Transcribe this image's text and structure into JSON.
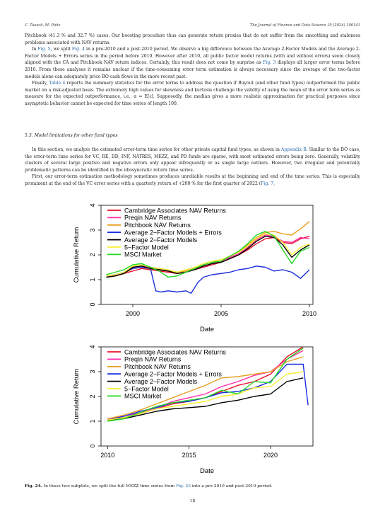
{
  "header": {
    "left": "C. Tausch, M. Pietz",
    "right": "The Journal of Finance and Data Science 10 (2024) 100141"
  },
  "paragraphs": {
    "p1": "Pitchbook (41.3 % and 32.7 %) cases. Our boosting procedure thus can generate return proxies that do not suffer from the smoothing and staleness problems associated with NAV returns.",
    "p2_a": "In ",
    "p2_link1": "Fig. 5",
    "p2_b": ", we split ",
    "p2_link2": "Fig. 4",
    "p2_c": " in a pre-2010 and a post-2010 period. We observe a big difference between the Average 2-Factor Models and the Average 2-Factor Models + Errors series in the period before 2010. However after 2010, all public factor model returns (with and without errors) seem closely aligned with the CA and Pitchbook NAV return indices. Certainly, this result does not come by surprise as ",
    "p2_link3": "Fig. 3",
    "p2_d": " displays all larger error terms before 2010. From these analyses it remains unclear if the time-consuming error term estimation is always necessary since the average of the two-factor models alone can adequately price BO cash flows in the more recent past.",
    "p3_a": "Finally, ",
    "p3_link1": "Table 4",
    "p3_b": " reports the summary statistics for the error terms to address the question if Buyout (and other fund types) outperformed the public market on a risk-adjusted basis. The extremely high values for skewness and kurtosis challenge the validity of using the mean of the error term series as measure for the expected outperformance, i.e., α = E[ε]. Supposedly, the median gives a more realistic approximation for practical purposes since asymptotic behavior cannot be expected for time series of length 100.",
    "section_title": "5.3.  Model limitations for other fund types",
    "p4_a": "In this section, we analyze the estimated error-term time series for other private capital fund types, as shown in ",
    "p4_link1": "Appendix B",
    "p4_b": ". Similar to the BO case, the error-term time series for VC, RE, DD, INF, NATRES, MEZZ, and PD funds are sparse, with most estimated errors being zero. Generally, volatility clusters of several large positive and negative errors only appear infrequently or as single large outliers. However, two irregular and potentially problematic patterns can be identified in the idiosyncratic return time series.",
    "p5_a": "First, our error-term estimation methodology sometimes produces unreliable results at the beginning and end of the time series. This is especially prominent at the end of the VC error series with a quarterly return of +200 % for the first quarter of 2022 (",
    "p5_link1": "Fig. 7",
    "p5_b": ","
  },
  "chart_data": [
    {
      "type": "line",
      "xlabel": "Date",
      "ylabel": "Cumulative Return",
      "xlim": [
        1998.2,
        2010.2
      ],
      "ylim": [
        0,
        4
      ],
      "xticks": [
        2000,
        2005,
        2010
      ],
      "yticks": [
        0,
        1,
        2,
        3,
        4
      ],
      "legend_position": "top-left",
      "series": [
        {
          "name": "Cambridge Associates NAV Returns",
          "color": "#e8102a",
          "x": [
            1998.5,
            1999,
            1999.5,
            2000,
            2000.5,
            2001,
            2001.5,
            2002,
            2002.5,
            2003,
            2003.5,
            2004,
            2004.5,
            2005,
            2005.5,
            2006,
            2006.5,
            2007,
            2007.5,
            2008,
            2008.5,
            2009,
            2009.5,
            2010
          ],
          "y": [
            1.1,
            1.15,
            1.25,
            1.35,
            1.45,
            1.4,
            1.35,
            1.3,
            1.25,
            1.3,
            1.4,
            1.5,
            1.6,
            1.7,
            1.85,
            2.0,
            2.2,
            2.45,
            2.65,
            2.7,
            2.5,
            2.45,
            2.65,
            2.75
          ]
        },
        {
          "name": "Preqin NAV Returns",
          "color": "#ff2ea8",
          "x": [
            1998.5,
            1999,
            1999.5,
            2000,
            2000.5,
            2001,
            2001.5,
            2002,
            2002.5,
            2003,
            2003.5,
            2004,
            2004.5,
            2005,
            2005.5,
            2006,
            2006.5,
            2007,
            2007.5,
            2008,
            2008.5,
            2009,
            2009.5,
            2010
          ],
          "y": [
            1.15,
            1.2,
            1.3,
            1.5,
            1.55,
            1.5,
            1.45,
            1.35,
            1.3,
            1.35,
            1.45,
            1.55,
            1.65,
            1.75,
            1.9,
            2.05,
            2.3,
            2.6,
            2.8,
            2.75,
            2.55,
            2.5,
            2.7,
            2.65
          ]
        },
        {
          "name": "Pitchbook NAV Returns",
          "color": "#e8a020",
          "x": [
            1998.5,
            1999,
            1999.5,
            2000,
            2000.5,
            2001,
            2001.5,
            2002,
            2002.5,
            2003,
            2003.5,
            2004,
            2004.5,
            2005,
            2005.5,
            2006,
            2006.5,
            2007,
            2007.5,
            2008,
            2008.5,
            2009,
            2009.5,
            2010
          ],
          "y": [
            1.1,
            1.15,
            1.25,
            1.45,
            1.5,
            1.45,
            1.4,
            1.35,
            1.3,
            1.35,
            1.45,
            1.6,
            1.7,
            1.8,
            1.95,
            2.15,
            2.4,
            2.7,
            2.9,
            2.95,
            2.85,
            2.8,
            3.05,
            3.35
          ]
        },
        {
          "name": "Average 2−Factor Models + Errors",
          "color": "#1a2ee0",
          "x": [
            1998.5,
            1999,
            1999.5,
            2000,
            2000.5,
            2001,
            2001.3,
            2001.6,
            2002,
            2002.5,
            2003,
            2003.3,
            2003.7,
            2004,
            2004.5,
            2005,
            2005.5,
            2006,
            2006.5,
            2007,
            2007.5,
            2008,
            2008.5,
            2009,
            2009.5,
            2010
          ],
          "y": [
            1.15,
            1.2,
            1.3,
            1.45,
            1.5,
            1.45,
            0.55,
            0.5,
            0.55,
            0.5,
            0.55,
            0.45,
            0.9,
            1.1,
            1.2,
            1.25,
            1.3,
            1.4,
            1.45,
            1.55,
            1.5,
            1.35,
            1.4,
            1.3,
            1.05,
            1.4
          ]
        },
        {
          "name": "Average 2−Factor Models",
          "color": "#000000",
          "x": [
            1998.5,
            1999,
            1999.5,
            2000,
            2000.5,
            2001,
            2001.5,
            2002,
            2002.5,
            2003,
            2003.5,
            2004,
            2004.5,
            2005,
            2005.5,
            2006,
            2006.5,
            2007,
            2007.5,
            2008,
            2008.5,
            2009,
            2009.5,
            2010
          ],
          "y": [
            1.1,
            1.15,
            1.25,
            1.5,
            1.55,
            1.45,
            1.4,
            1.35,
            1.25,
            1.3,
            1.4,
            1.55,
            1.65,
            1.7,
            1.85,
            2.0,
            2.25,
            2.55,
            2.75,
            2.7,
            2.4,
            1.9,
            2.2,
            2.4
          ]
        },
        {
          "name": "5−Factor Model",
          "color": "#f5f032",
          "x": [
            1998.5,
            1999,
            1999.5,
            2000,
            2000.5,
            2001,
            2001.5,
            2002,
            2002.5,
            2003,
            2003.5,
            2004,
            2004.5,
            2005,
            2005.5,
            2006,
            2006.5,
            2007,
            2007.5,
            2008,
            2008.5,
            2009,
            2009.5,
            2010
          ],
          "y": [
            1.15,
            1.2,
            1.3,
            1.55,
            1.6,
            1.5,
            1.45,
            1.4,
            1.3,
            1.4,
            1.5,
            1.65,
            1.75,
            1.8,
            1.95,
            2.1,
            2.35,
            2.65,
            2.85,
            2.8,
            2.5,
            2.0,
            2.3,
            2.45
          ]
        },
        {
          "name": "MSCI Market",
          "color": "#22d822",
          "x": [
            1998.5,
            1999,
            1999.5,
            2000,
            2000.5,
            2001,
            2001.5,
            2002,
            2002.5,
            2003,
            2003.5,
            2004,
            2004.5,
            2005,
            2005.5,
            2006,
            2006.5,
            2007,
            2007.5,
            2008,
            2008.5,
            2009,
            2009.5,
            2010
          ],
          "y": [
            1.2,
            1.3,
            1.4,
            1.6,
            1.65,
            1.5,
            1.35,
            1.1,
            1.15,
            1.3,
            1.45,
            1.6,
            1.7,
            1.75,
            1.95,
            2.15,
            2.45,
            2.8,
            2.95,
            2.75,
            2.2,
            1.65,
            2.15,
            2.3
          ]
        }
      ]
    },
    {
      "type": "line",
      "xlabel": "Date",
      "ylabel": "Cumulative Return",
      "xlim": [
        2009.6,
        2022.6
      ],
      "ylim": [
        0,
        4
      ],
      "xticks": [
        2010,
        2015,
        2020
      ],
      "yticks": [
        0,
        1,
        2,
        3,
        4
      ],
      "legend_position": "top-left",
      "series": [
        {
          "name": "Cambridge Associates NAV Returns",
          "color": "#e8102a",
          "x": [
            2010,
            2011,
            2012,
            2013,
            2014,
            2015,
            2016,
            2017,
            2018,
            2019,
            2020,
            2021,
            2022
          ],
          "y": [
            1.05,
            1.15,
            1.3,
            1.5,
            1.7,
            1.8,
            1.95,
            2.2,
            2.45,
            2.6,
            2.9,
            3.6,
            4.0
          ]
        },
        {
          "name": "Preqin NAV Returns",
          "color": "#ff2ea8",
          "x": [
            2010,
            2011,
            2012,
            2013,
            2014,
            2015,
            2016,
            2017,
            2018,
            2019,
            2020,
            2021,
            2022
          ],
          "y": [
            1.1,
            1.2,
            1.35,
            1.55,
            1.8,
            1.95,
            2.1,
            2.4,
            2.6,
            2.85,
            3.0,
            3.5,
            3.85
          ]
        },
        {
          "name": "Pitchbook NAV Returns",
          "color": "#e8a020",
          "x": [
            2010,
            2011,
            2012,
            2013,
            2014,
            2015,
            2016,
            2017,
            2018,
            2019,
            2020,
            2021,
            2022
          ],
          "y": [
            1.1,
            1.25,
            1.45,
            1.7,
            1.95,
            2.2,
            2.45,
            2.75,
            2.8,
            2.9,
            3.0,
            3.4,
            3.6
          ]
        },
        {
          "name": "Average 2−Factor Models + Errors",
          "color": "#1a2ee0",
          "x": [
            2010,
            2011,
            2012,
            2013,
            2014,
            2015,
            2016,
            2017,
            2018,
            2019,
            2020,
            2021,
            2022,
            2022.3
          ],
          "y": [
            1.05,
            1.2,
            1.4,
            1.55,
            1.75,
            1.8,
            1.95,
            2.15,
            2.2,
            2.35,
            2.6,
            3.3,
            3.3,
            1.65
          ]
        },
        {
          "name": "Average 2−Factor Models",
          "color": "#000000",
          "x": [
            2010,
            2011,
            2012,
            2013,
            2014,
            2015,
            2016,
            2017,
            2018,
            2019,
            2020,
            2021,
            2022
          ],
          "y": [
            1.05,
            1.1,
            1.25,
            1.4,
            1.5,
            1.55,
            1.6,
            1.75,
            1.85,
            2.0,
            2.1,
            2.6,
            2.75
          ]
        },
        {
          "name": "5−Factor Model",
          "color": "#f5f032",
          "x": [
            2010,
            2011,
            2012,
            2013,
            2014,
            2015,
            2016,
            2017,
            2018,
            2019,
            2020,
            2021,
            2022
          ],
          "y": [
            1.05,
            1.15,
            1.3,
            1.5,
            1.6,
            1.7,
            1.8,
            2.0,
            2.1,
            2.35,
            2.4,
            2.9,
            3.0
          ]
        },
        {
          "name": "MSCI Market",
          "color": "#22d822",
          "x": [
            2010,
            2011,
            2012,
            2013,
            2014,
            2015,
            2016,
            2017,
            2018,
            2019,
            2020,
            2021,
            2022
          ],
          "y": [
            1.0,
            1.1,
            1.35,
            1.6,
            1.75,
            1.85,
            1.95,
            2.25,
            2.1,
            2.6,
            2.55,
            3.5,
            3.95
          ]
        }
      ]
    }
  ],
  "caption": {
    "label": "Fig. 24.",
    "text_a": " In these two subplots, we split the full MEZZ time series from ",
    "link": "Fig. 23",
    "text_b": " into a pre-2010 and post-2010 period."
  },
  "page_number": "18"
}
